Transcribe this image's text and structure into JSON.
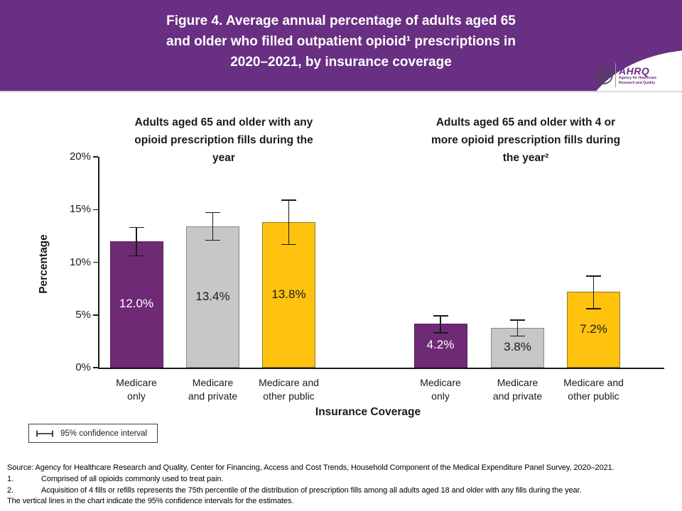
{
  "header": {
    "title": "Figure 4. Average annual percentage of adults aged 65\nand older who filled outpatient opioid¹ prescriptions in\n2020–2021, by insurance coverage",
    "bg_color": "#692F82",
    "logo": {
      "abbr": "AHRQ",
      "line1": "Agency for Healthcare",
      "line2": "Research and Quality"
    }
  },
  "chart_data": {
    "type": "bar",
    "title": "Figure 4. Average annual percentage of adults aged 65 and older who filled outpatient opioid¹ prescriptions in 2020–2021, by insurance coverage",
    "xlabel": "Insurance Coverage",
    "ylabel": "Percentage",
    "ylim": [
      0,
      20
    ],
    "ytick_labels": [
      "0%",
      "5%",
      "10%",
      "15%",
      "20%"
    ],
    "legend_note": "95% confidence interval",
    "panels": [
      {
        "title": "Adults aged 65 and older with any\nopioid prescription fills during the\nyear"
      },
      {
        "title": "Adults aged 65 and older with 4 or\nmore opioid prescription fills during\nthe year²"
      }
    ],
    "bars": [
      {
        "panel": 0,
        "category": "Medicare\nonly",
        "value": 12.0,
        "display": "12.0%",
        "color": "purple",
        "ci": [
          10.6,
          13.3
        ]
      },
      {
        "panel": 0,
        "category": "Medicare\nand private",
        "value": 13.4,
        "display": "13.4%",
        "color": "gray",
        "ci": [
          12.1,
          14.7
        ]
      },
      {
        "panel": 0,
        "category": "Medicare and\nother public",
        "value": 13.8,
        "display": "13.8%",
        "color": "gold",
        "ci": [
          11.7,
          15.9
        ]
      },
      {
        "panel": 1,
        "category": "Medicare\nonly",
        "value": 4.2,
        "display": "4.2%",
        "color": "purple",
        "ci": [
          3.3,
          4.9
        ]
      },
      {
        "panel": 1,
        "category": "Medicare\nand private",
        "value": 3.8,
        "display": "3.8%",
        "color": "gray",
        "ci": [
          3.0,
          4.5
        ]
      },
      {
        "panel": 1,
        "category": "Medicare and\nother public",
        "value": 7.2,
        "display": "7.2%",
        "color": "gold",
        "ci": [
          5.6,
          8.7
        ]
      }
    ],
    "colors": {
      "purple": "#6E2A75",
      "gray": "#C7C7C7",
      "gold": "#FFC20E"
    }
  },
  "footer": {
    "source": "Source: Agency for Healthcare Research and Quality, Center for Financing, Access and Cost Trends, Household Component of the Medical Expenditure Panel Survey, 2020–2021.",
    "notes": [
      {
        "num": "1.",
        "text": "Comprised of all opioids commonly used to treat pain."
      },
      {
        "num": "2.",
        "text": "Acquisition of 4 fills or refills represents the 75th percentile of the distribution of prescription fills among all adults aged 18 and older with any fills during the year."
      },
      {
        "num": "",
        "text": "The vertical lines in the chart indicate the 95% confidence intervals for the estimates."
      }
    ]
  }
}
